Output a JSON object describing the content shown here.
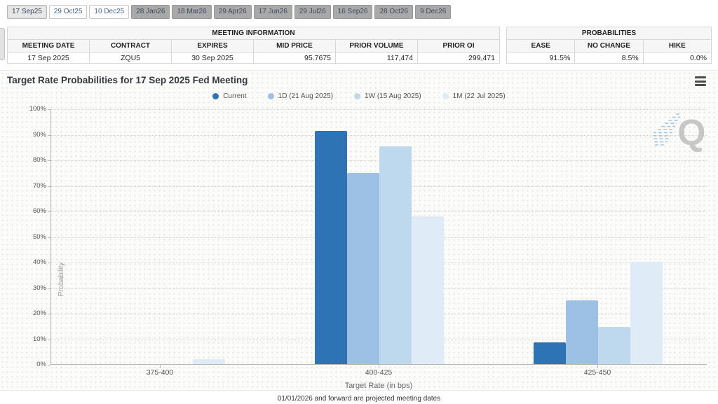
{
  "tabs": {
    "items": [
      {
        "label": "17 Sep25",
        "state": "active"
      },
      {
        "label": "29 Oct25",
        "state": "link"
      },
      {
        "label": "10 Dec25",
        "state": "link"
      },
      {
        "label": "28 Jan26",
        "state": "disabled"
      },
      {
        "label": "18 Mar26",
        "state": "disabled"
      },
      {
        "label": "29 Apr26",
        "state": "disabled"
      },
      {
        "label": "17 Jun26",
        "state": "disabled"
      },
      {
        "label": "29 Jul26",
        "state": "disabled"
      },
      {
        "label": "16 Sep26",
        "state": "disabled"
      },
      {
        "label": "28 Oct26",
        "state": "disabled"
      },
      {
        "label": "9 Dec26",
        "state": "disabled"
      }
    ]
  },
  "meeting_info": {
    "title": "MEETING INFORMATION",
    "columns": [
      "MEETING DATE",
      "CONTRACT",
      "EXPIRES",
      "MID PRICE",
      "PRIOR VOLUME",
      "PRIOR OI"
    ],
    "aligns": [
      "center",
      "center",
      "center",
      "right",
      "right",
      "right"
    ],
    "widths_pct": [
      20.6,
      15.2,
      16.1,
      14.9,
      21.1,
      12.1
    ],
    "values": [
      "17 Sep 2025",
      "ZQU5",
      "30 Sep 2025",
      "95.7675",
      "117,474",
      "299,471"
    ]
  },
  "probabilities": {
    "title": "PROBABILITIES",
    "columns": [
      "EASE",
      "NO CHANGE",
      "HIKE"
    ],
    "aligns": [
      "right",
      "right",
      "right"
    ],
    "widths_pct": [
      28.4,
      41.0,
      30.6
    ],
    "values": [
      "91.5%",
      "8.5%",
      "0.0%"
    ]
  },
  "chart": {
    "title": "Target Rate Probabilities for 17 Sep 2025 Fed Meeting",
    "menu_icon": "hamburger-icon",
    "watermark_letter": "Q",
    "footnote": "01/01/2026 and forward are projected meeting dates"
  },
  "chart_data": {
    "type": "bar",
    "title": "Target Rate Probabilities for 17 Sep 2025 Fed Meeting",
    "categories": [
      "375-400",
      "400-425",
      "425-450"
    ],
    "series": [
      {
        "name": "Current",
        "color": "#2e74b5",
        "values": [
          0,
          91.5,
          8.5
        ]
      },
      {
        "name": "1D (21 Aug 2025)",
        "color": "#9dc1e4",
        "values": [
          0,
          75.0,
          25.0
        ]
      },
      {
        "name": "1W (15 Aug 2025)",
        "color": "#bed8ed",
        "values": [
          0,
          85.5,
          14.5
        ]
      },
      {
        "name": "1M (22 Jul 2025)",
        "color": "#dfebf7",
        "values": [
          2.0,
          58.0,
          40.0
        ]
      }
    ],
    "xlabel": "Target Rate (in bps)",
    "ylabel": "Probability",
    "ylim": [
      0,
      100
    ],
    "ytick_step": 10,
    "ytick_suffix": "%",
    "grid": "dotted-horizontal",
    "legend_position": "top"
  },
  "colors": {
    "watermark_q": "#c7c7c7",
    "watermark_lines": "#a5c7e4",
    "grid_dot": "#d2d2d2"
  }
}
